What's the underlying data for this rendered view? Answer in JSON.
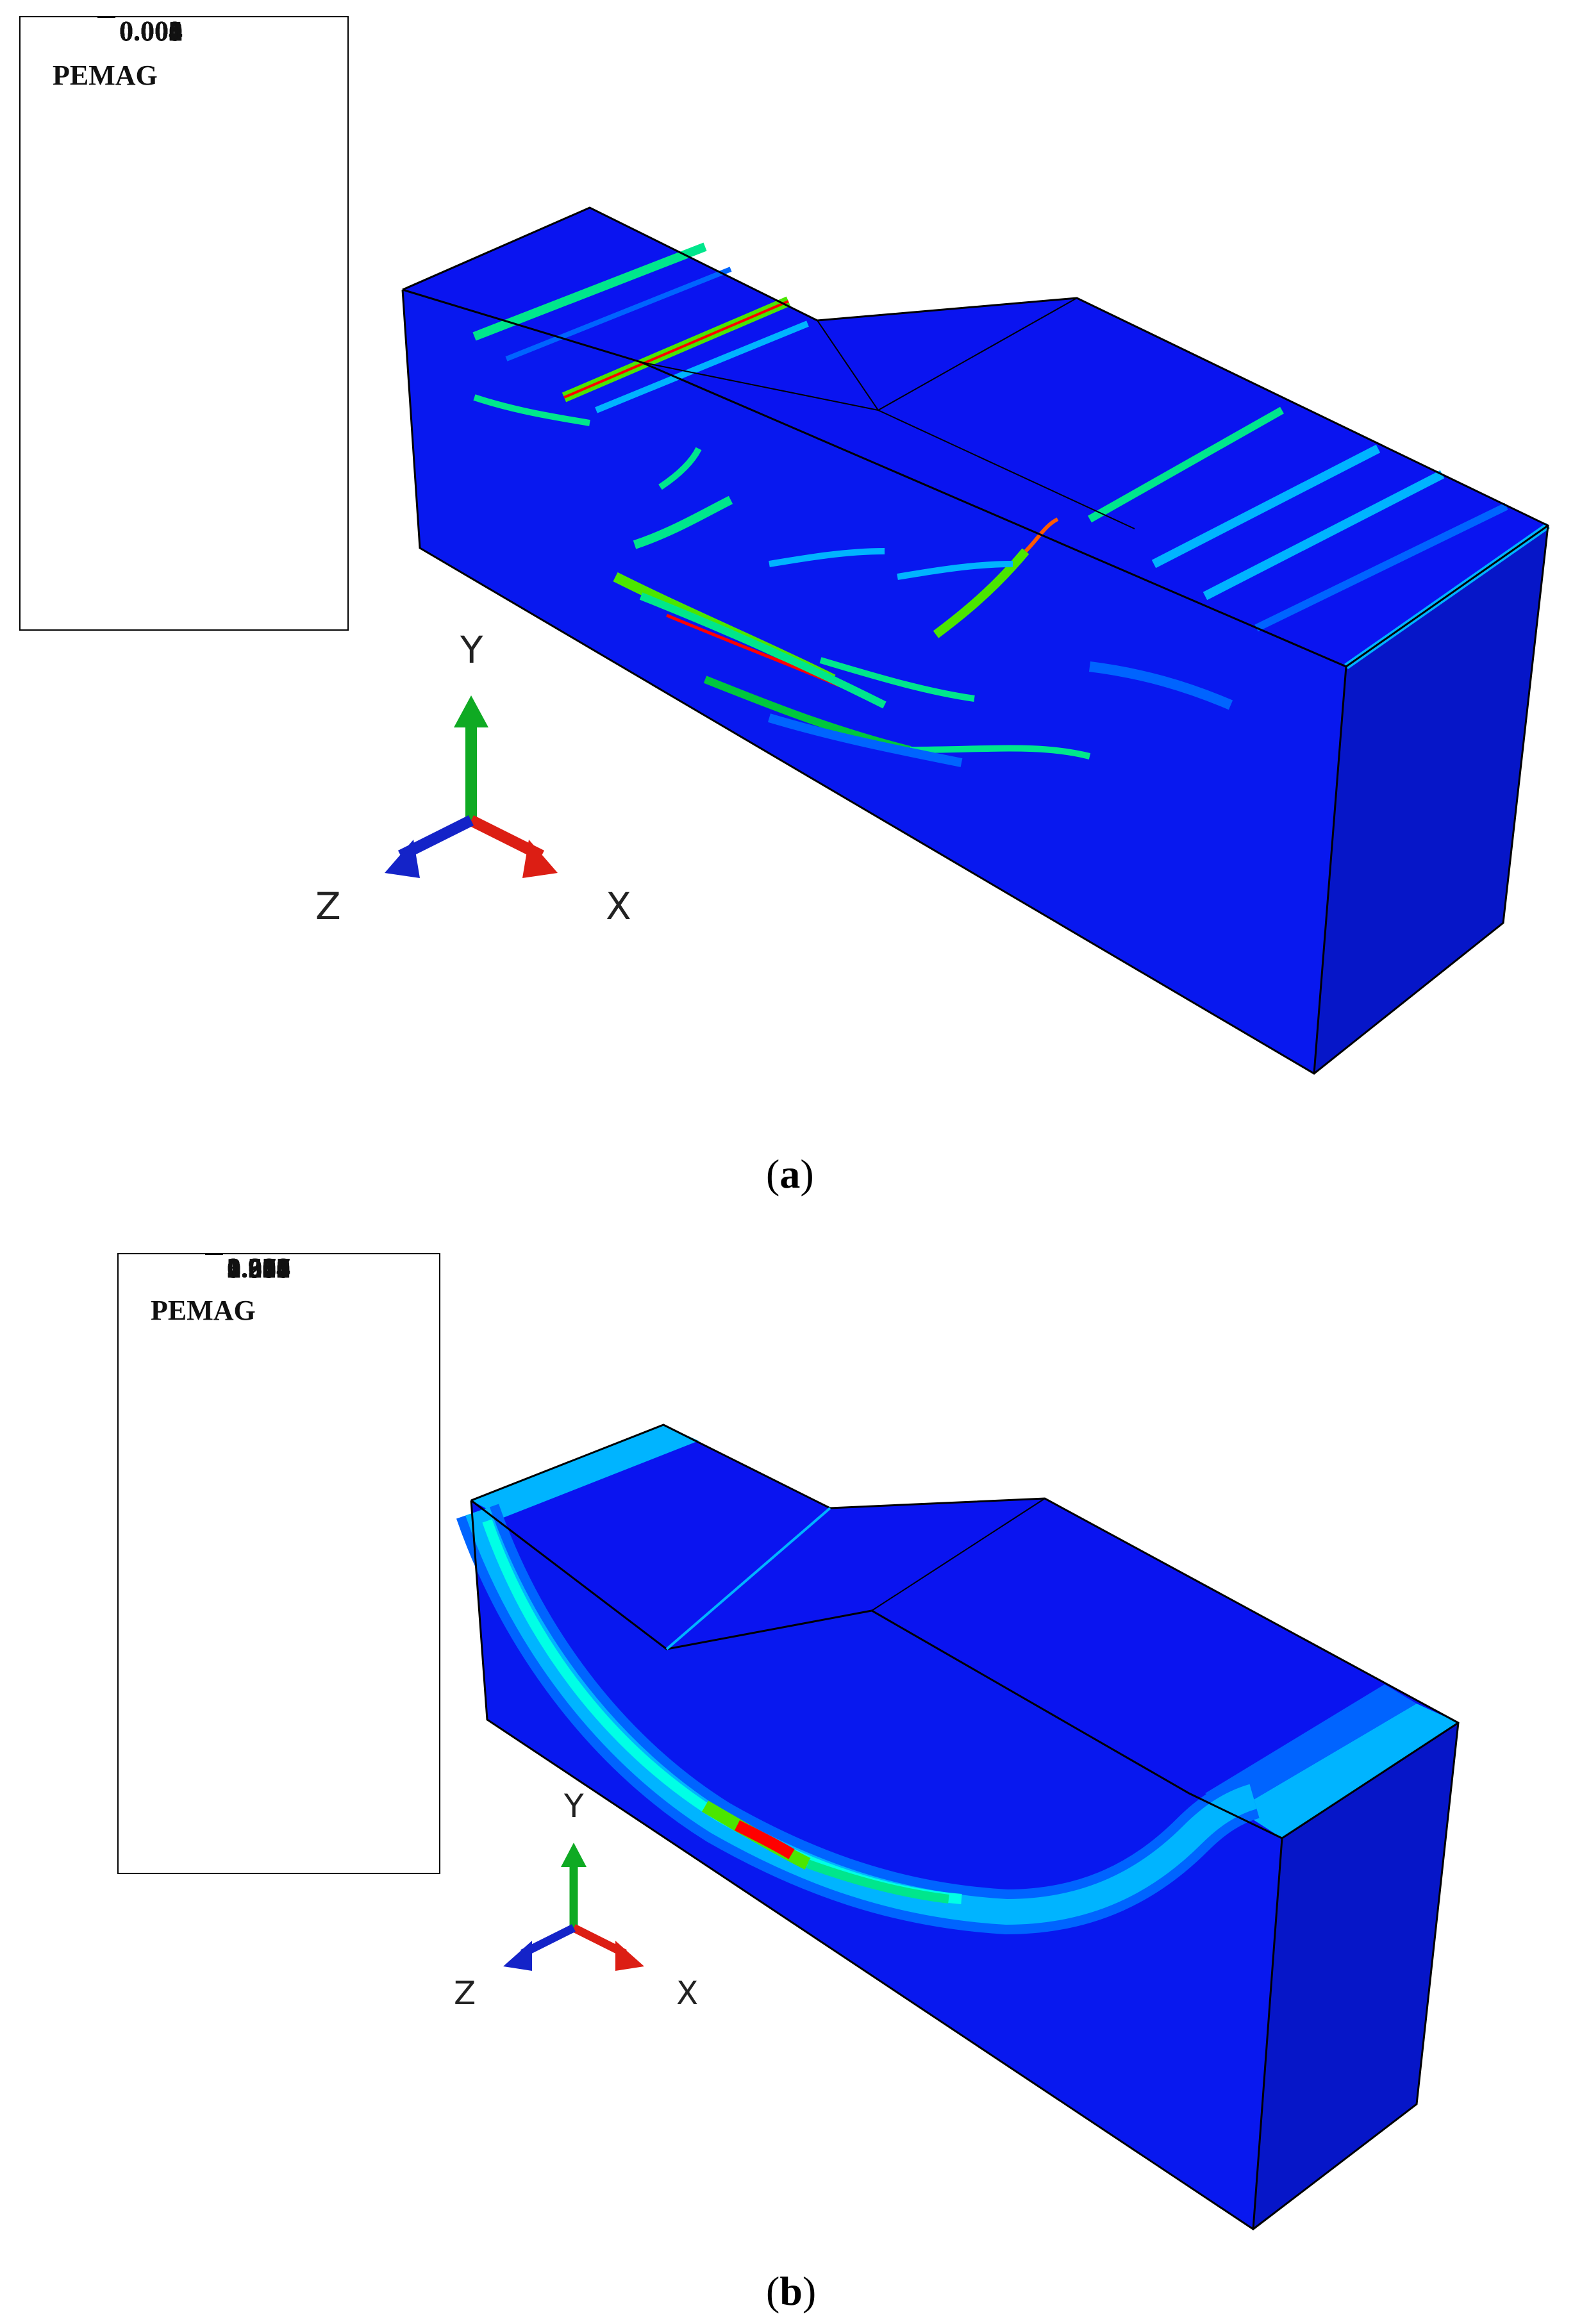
{
  "panels": [
    {
      "caption_open": "(",
      "caption_letter": "a",
      "caption_close": ")",
      "legend": {
        "title": "PEMAG",
        "values": [
          "0.004",
          "0.003",
          "0.003",
          "0.003",
          "0.003",
          "0.002",
          "0.002",
          "0.002",
          "0.001",
          "0.001",
          "0.001",
          "0.000",
          "0.000"
        ]
      },
      "axes": {
        "y": "Y",
        "x": "X",
        "z": "Z"
      }
    },
    {
      "caption_open": "(",
      "caption_letter": "b",
      "caption_close": ")",
      "legend": {
        "title": "PEMAG",
        "values": [
          "3.913",
          "3.587",
          "3.261",
          "2.935",
          "2.608",
          "2.282",
          "1.956",
          "1.630",
          "1.304",
          "0.978",
          "0.652",
          "0.326",
          "0.000"
        ]
      },
      "axes": {
        "y": "Y",
        "x": "X",
        "z": "Z"
      }
    }
  ],
  "colors": {
    "contour_bands": [
      "#ff0000",
      "#ff5a00",
      "#ffb400",
      "#dcff00",
      "#4be600",
      "#14d21e",
      "#00c83c",
      "#00e68c",
      "#00ffe6",
      "#00b4ff",
      "#0064ff",
      "#0019e6",
      "#0000ff"
    ],
    "model_top": "#0a14f0",
    "model_front": "#0818ef",
    "model_side": "#0616c8",
    "axis_y": "#0faa23",
    "axis_x": "#dc1e14",
    "axis_z": "#1423c8"
  }
}
